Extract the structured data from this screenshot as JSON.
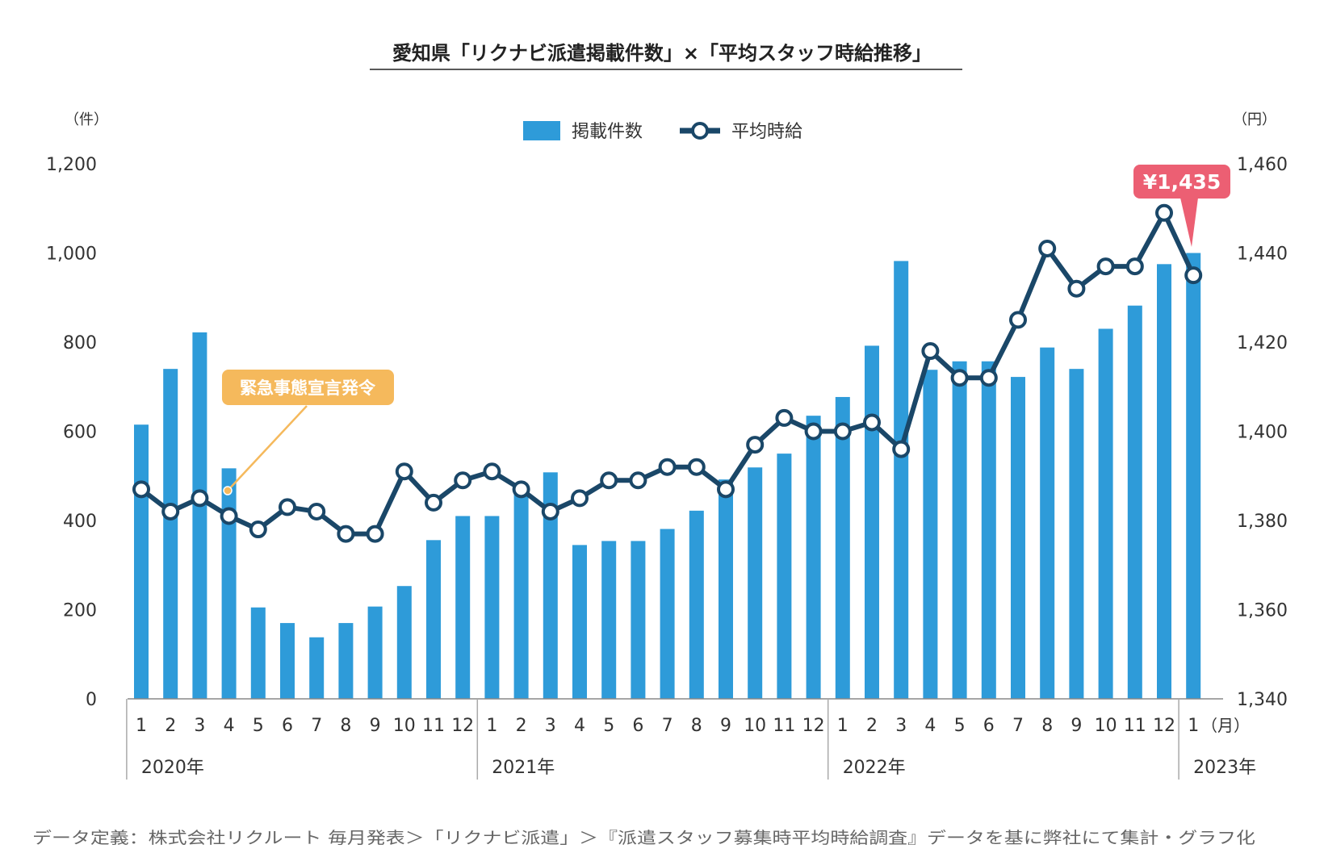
{
  "title": "愛知県「リクナビ派遣掲載件数」×「平均スタッフ時給推移」",
  "legend": {
    "bars": "掲載件数",
    "line": "平均時給"
  },
  "unit_left": "（件）",
  "unit_right": "（円）",
  "unit_month": "（月）",
  "callout_emergency": "緊急事態宣言発令",
  "callout_latest": "¥1,435",
  "source_note": "データ定義：株式会社リクルート 毎月発表＞「リクナビ派遣」＞『派遣スタッフ募集時平均時給調査』データを基に弊社にて集計・グラフ化",
  "colors": {
    "bar": "#2e9bd9",
    "line": "#1a4768",
    "emergency": "#f5b95c",
    "latest": "#ec5f73"
  },
  "chart_data": {
    "type": "bar",
    "categories": [
      "1",
      "2",
      "3",
      "4",
      "5",
      "6",
      "7",
      "8",
      "9",
      "10",
      "11",
      "12",
      "1",
      "2",
      "3",
      "4",
      "5",
      "6",
      "7",
      "8",
      "9",
      "10",
      "11",
      "12",
      "1",
      "2",
      "3",
      "4",
      "5",
      "6",
      "7",
      "8",
      "9",
      "10",
      "11",
      "12",
      "1"
    ],
    "year_groups": [
      {
        "label": "2020年",
        "start": 0,
        "end": 11
      },
      {
        "label": "2021年",
        "start": 12,
        "end": 23
      },
      {
        "label": "2022年",
        "start": 24,
        "end": 35
      },
      {
        "label": "2023年",
        "start": 36,
        "end": 36
      }
    ],
    "series": [
      {
        "name": "掲載件数",
        "axis": "left",
        "type": "bar",
        "values": [
          615,
          740,
          822,
          517,
          205,
          170,
          138,
          170,
          207,
          253,
          356,
          410,
          410,
          480,
          508,
          345,
          354,
          354,
          381,
          422,
          492,
          519,
          550,
          635,
          677,
          792,
          982,
          738,
          757,
          757,
          722,
          788,
          740,
          830,
          882,
          975,
          1000
        ]
      },
      {
        "name": "平均時給",
        "axis": "right",
        "type": "line",
        "values": [
          1387,
          1382,
          1385,
          1381,
          1378,
          1383,
          1382,
          1377,
          1377,
          1391,
          1384,
          1389,
          1391,
          1387,
          1382,
          1385,
          1389,
          1389,
          1392,
          1392,
          1387,
          1397,
          1403,
          1400,
          1400,
          1402,
          1396,
          1418,
          1412,
          1412,
          1425,
          1441,
          1432,
          1437,
          1437,
          1449,
          1435
        ]
      }
    ],
    "y_left": {
      "range": [
        0,
        1200
      ],
      "ticks": [
        "0",
        "200",
        "400",
        "600",
        "800",
        "1,000",
        "1,200"
      ]
    },
    "y_right": {
      "range": [
        1340,
        1460
      ],
      "ticks": [
        "1,340",
        "1,360",
        "1,380",
        "1,400",
        "1,420",
        "1,440",
        "1,460"
      ]
    },
    "grid": false,
    "legend_position": "top-center"
  }
}
